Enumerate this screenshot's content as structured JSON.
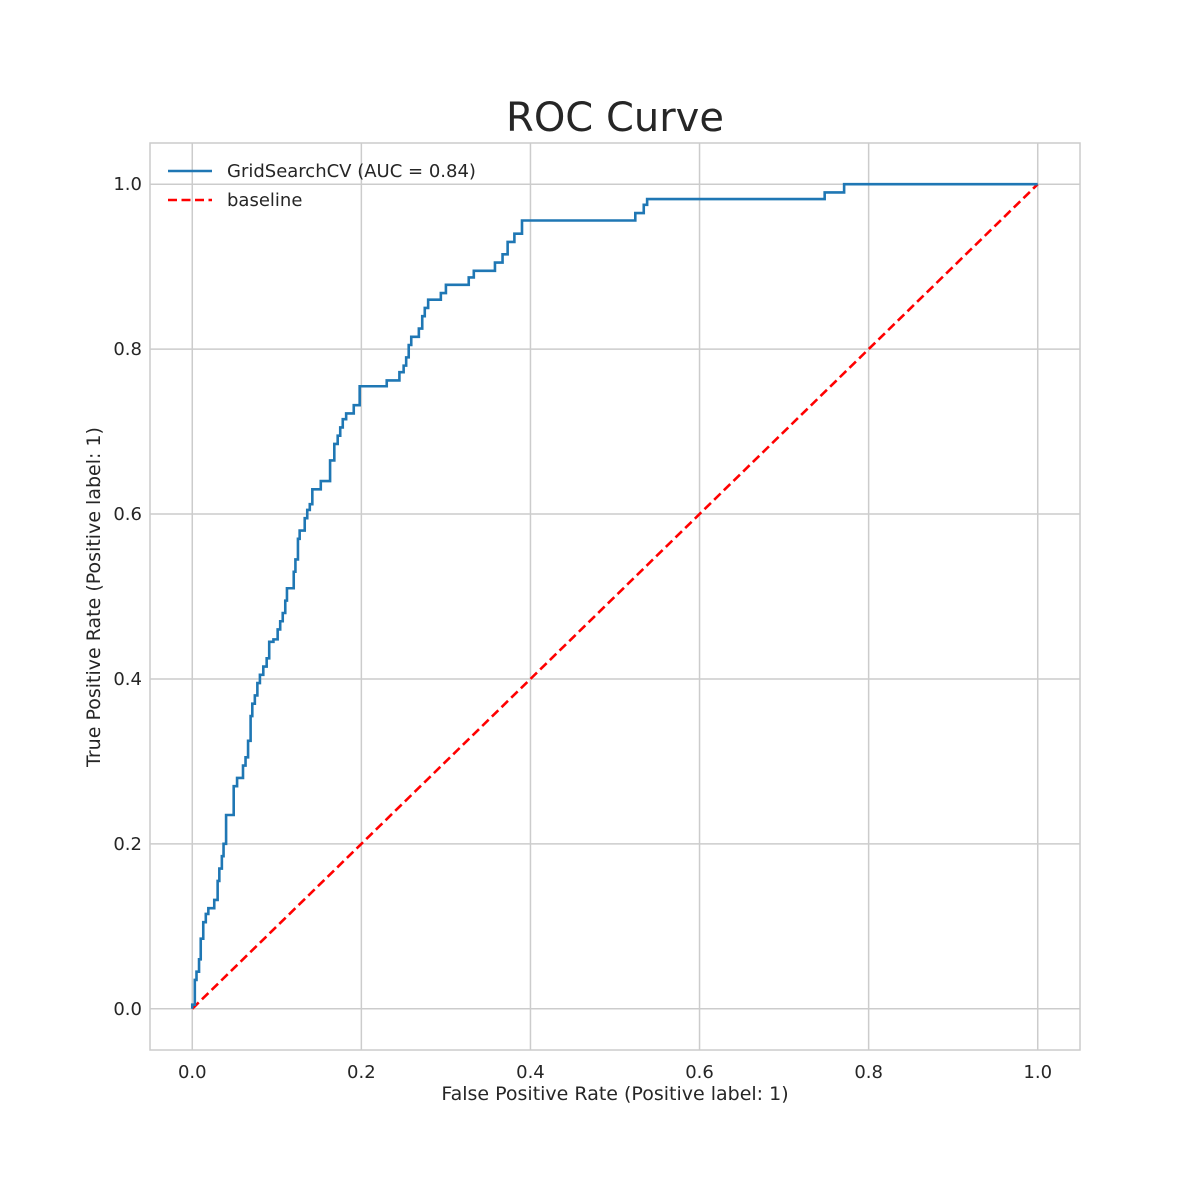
{
  "chart_data": {
    "type": "line",
    "title": "ROC Curve",
    "xlabel": "False Positive Rate (Positive label: 1)",
    "ylabel": "True Positive Rate (Positive label: 1)",
    "xlim": [
      -0.05,
      1.05
    ],
    "ylim": [
      -0.05,
      1.05
    ],
    "xticks": [
      0.0,
      0.2,
      0.4,
      0.6,
      0.8,
      1.0
    ],
    "yticks": [
      0.0,
      0.2,
      0.4,
      0.6,
      0.8,
      1.0
    ],
    "xtick_labels": [
      "0.0",
      "0.2",
      "0.4",
      "0.6",
      "0.8",
      "1.0"
    ],
    "ytick_labels": [
      "0.0",
      "0.2",
      "0.4",
      "0.6",
      "0.8",
      "1.0"
    ],
    "grid": true,
    "legend_position": "top-left",
    "series": [
      {
        "name": "GridSearchCV (AUC = 0.84)",
        "color": "#1f77b4",
        "style": "solid",
        "points": [
          [
            0.0,
            0.0
          ],
          [
            0.0,
            0.005
          ],
          [
            0.003,
            0.005
          ],
          [
            0.003,
            0.035
          ],
          [
            0.005,
            0.035
          ],
          [
            0.005,
            0.045
          ],
          [
            0.008,
            0.045
          ],
          [
            0.008,
            0.06
          ],
          [
            0.01,
            0.06
          ],
          [
            0.01,
            0.085
          ],
          [
            0.013,
            0.085
          ],
          [
            0.013,
            0.105
          ],
          [
            0.016,
            0.105
          ],
          [
            0.016,
            0.115
          ],
          [
            0.019,
            0.115
          ],
          [
            0.019,
            0.122
          ],
          [
            0.026,
            0.122
          ],
          [
            0.026,
            0.132
          ],
          [
            0.03,
            0.132
          ],
          [
            0.03,
            0.155
          ],
          [
            0.032,
            0.155
          ],
          [
            0.032,
            0.17
          ],
          [
            0.035,
            0.17
          ],
          [
            0.035,
            0.185
          ],
          [
            0.037,
            0.185
          ],
          [
            0.037,
            0.2
          ],
          [
            0.04,
            0.2
          ],
          [
            0.04,
            0.235
          ],
          [
            0.049,
            0.235
          ],
          [
            0.049,
            0.27
          ],
          [
            0.053,
            0.27
          ],
          [
            0.053,
            0.28
          ],
          [
            0.06,
            0.28
          ],
          [
            0.06,
            0.295
          ],
          [
            0.063,
            0.295
          ],
          [
            0.063,
            0.305
          ],
          [
            0.066,
            0.305
          ],
          [
            0.066,
            0.325
          ],
          [
            0.069,
            0.325
          ],
          [
            0.069,
            0.355
          ],
          [
            0.071,
            0.355
          ],
          [
            0.071,
            0.37
          ],
          [
            0.074,
            0.37
          ],
          [
            0.074,
            0.38
          ],
          [
            0.077,
            0.38
          ],
          [
            0.077,
            0.395
          ],
          [
            0.08,
            0.395
          ],
          [
            0.08,
            0.405
          ],
          [
            0.084,
            0.405
          ],
          [
            0.084,
            0.415
          ],
          [
            0.088,
            0.415
          ],
          [
            0.088,
            0.425
          ],
          [
            0.091,
            0.425
          ],
          [
            0.091,
            0.445
          ],
          [
            0.096,
            0.445
          ],
          [
            0.096,
            0.448
          ],
          [
            0.101,
            0.448
          ],
          [
            0.101,
            0.46
          ],
          [
            0.104,
            0.46
          ],
          [
            0.104,
            0.47
          ],
          [
            0.107,
            0.47
          ],
          [
            0.107,
            0.48
          ],
          [
            0.11,
            0.48
          ],
          [
            0.11,
            0.495
          ],
          [
            0.112,
            0.495
          ],
          [
            0.112,
            0.51
          ],
          [
            0.12,
            0.51
          ],
          [
            0.12,
            0.53
          ],
          [
            0.122,
            0.53
          ],
          [
            0.122,
            0.545
          ],
          [
            0.125,
            0.545
          ],
          [
            0.125,
            0.57
          ],
          [
            0.127,
            0.57
          ],
          [
            0.127,
            0.58
          ],
          [
            0.133,
            0.58
          ],
          [
            0.133,
            0.595
          ],
          [
            0.136,
            0.595
          ],
          [
            0.136,
            0.605
          ],
          [
            0.139,
            0.605
          ],
          [
            0.139,
            0.612
          ],
          [
            0.142,
            0.612
          ],
          [
            0.142,
            0.63
          ],
          [
            0.152,
            0.63
          ],
          [
            0.152,
            0.64
          ],
          [
            0.163,
            0.64
          ],
          [
            0.163,
            0.665
          ],
          [
            0.168,
            0.665
          ],
          [
            0.168,
            0.685
          ],
          [
            0.172,
            0.685
          ],
          [
            0.172,
            0.695
          ],
          [
            0.175,
            0.695
          ],
          [
            0.175,
            0.705
          ],
          [
            0.178,
            0.705
          ],
          [
            0.178,
            0.715
          ],
          [
            0.182,
            0.715
          ],
          [
            0.182,
            0.722
          ],
          [
            0.191,
            0.722
          ],
          [
            0.191,
            0.732
          ],
          [
            0.198,
            0.732
          ],
          [
            0.198,
            0.755
          ],
          [
            0.23,
            0.755
          ],
          [
            0.23,
            0.762
          ],
          [
            0.245,
            0.762
          ],
          [
            0.245,
            0.772
          ],
          [
            0.25,
            0.772
          ],
          [
            0.25,
            0.78
          ],
          [
            0.253,
            0.78
          ],
          [
            0.253,
            0.79
          ],
          [
            0.256,
            0.79
          ],
          [
            0.256,
            0.805
          ],
          [
            0.259,
            0.805
          ],
          [
            0.259,
            0.815
          ],
          [
            0.268,
            0.815
          ],
          [
            0.268,
            0.825
          ],
          [
            0.272,
            0.825
          ],
          [
            0.272,
            0.84
          ],
          [
            0.275,
            0.84
          ],
          [
            0.275,
            0.85
          ],
          [
            0.279,
            0.85
          ],
          [
            0.279,
            0.86
          ],
          [
            0.294,
            0.86
          ],
          [
            0.294,
            0.868
          ],
          [
            0.3,
            0.868
          ],
          [
            0.3,
            0.878
          ],
          [
            0.327,
            0.878
          ],
          [
            0.327,
            0.887
          ],
          [
            0.333,
            0.887
          ],
          [
            0.333,
            0.895
          ],
          [
            0.358,
            0.895
          ],
          [
            0.358,
            0.905
          ],
          [
            0.367,
            0.905
          ],
          [
            0.367,
            0.915
          ],
          [
            0.373,
            0.915
          ],
          [
            0.373,
            0.93
          ],
          [
            0.381,
            0.93
          ],
          [
            0.381,
            0.94
          ],
          [
            0.39,
            0.94
          ],
          [
            0.39,
            0.956
          ],
          [
            0.524,
            0.956
          ],
          [
            0.524,
            0.965
          ],
          [
            0.534,
            0.965
          ],
          [
            0.534,
            0.975
          ],
          [
            0.538,
            0.975
          ],
          [
            0.538,
            0.982
          ],
          [
            0.748,
            0.982
          ],
          [
            0.748,
            0.99
          ],
          [
            0.771,
            0.99
          ],
          [
            0.771,
            1.0
          ],
          [
            1.0,
            1.0
          ]
        ]
      },
      {
        "name": "baseline",
        "color": "#ff0000",
        "style": "dashed",
        "points": [
          [
            0.0,
            0.0
          ],
          [
            1.0,
            1.0
          ]
        ]
      }
    ]
  }
}
